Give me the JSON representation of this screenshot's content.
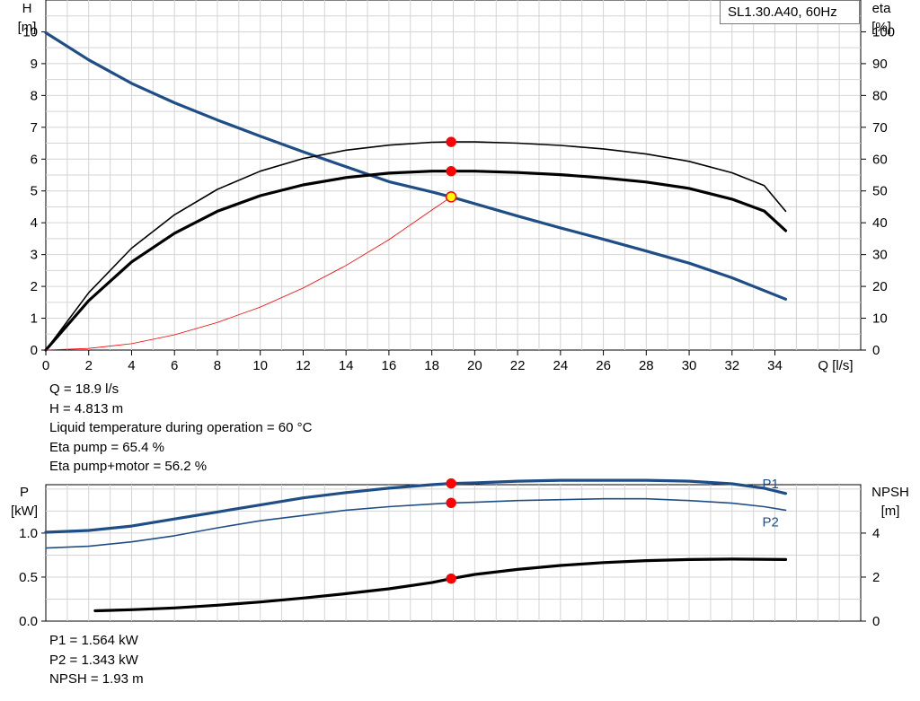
{
  "chart_data": [
    {
      "type": "line",
      "legend_label": "SL1.30.A40, 60Hz",
      "y_label_left": [
        "H",
        "[m]"
      ],
      "y_label_right": [
        "eta",
        "[%]"
      ],
      "x_label": "Q [l/s]",
      "xlim": [
        0,
        38
      ],
      "ylim": [
        0,
        11
      ],
      "y2lim": [
        0,
        110
      ],
      "x_ticks": [
        0,
        2,
        4,
        6,
        8,
        10,
        12,
        14,
        16,
        18,
        20,
        22,
        24,
        26,
        28,
        30,
        32,
        34
      ],
      "y_ticks": [
        0,
        1,
        2,
        3,
        4,
        5,
        6,
        7,
        8,
        9,
        10
      ],
      "y2_ticks": [
        0,
        10,
        20,
        30,
        40,
        50,
        60,
        70,
        80,
        90,
        100
      ],
      "grid": true,
      "series": [
        {
          "axis": "left",
          "color": "#1f4e86",
          "points": [
            [
              0,
              9.97
            ],
            [
              2,
              9.12
            ],
            [
              4,
              8.38
            ],
            [
              6,
              7.77
            ],
            [
              8,
              7.23
            ],
            [
              10,
              6.72
            ],
            [
              12,
              6.23
            ],
            [
              14,
              5.76
            ],
            [
              16,
              5.29
            ],
            [
              18,
              4.97
            ],
            [
              18.9,
              4.813
            ],
            [
              20,
              4.6
            ],
            [
              22,
              4.21
            ],
            [
              24,
              3.84
            ],
            [
              26,
              3.48
            ],
            [
              28,
              3.11
            ],
            [
              30,
              2.73
            ],
            [
              32,
              2.27
            ],
            [
              34.5,
              1.6
            ]
          ]
        },
        {
          "axis": "right",
          "color": "#000000",
          "points": [
            [
              0,
              0
            ],
            [
              2,
              18
            ],
            [
              4,
              32
            ],
            [
              6,
              42.5
            ],
            [
              8,
              50.5
            ],
            [
              10,
              56.2
            ],
            [
              12,
              60.2
            ],
            [
              14,
              62.8
            ],
            [
              16,
              64.4
            ],
            [
              18,
              65.3
            ],
            [
              18.9,
              65.4
            ],
            [
              20,
              65.4
            ],
            [
              22,
              65
            ],
            [
              24,
              64.3
            ],
            [
              26,
              63.2
            ],
            [
              28,
              61.6
            ],
            [
              30,
              59.3
            ],
            [
              32,
              55.7
            ],
            [
              33.5,
              51.7
            ],
            [
              34.5,
              43.6
            ]
          ]
        },
        {
          "axis": "right",
          "color": "#000000",
          "points": [
            [
              0,
              0
            ],
            [
              2,
              15.5
            ],
            [
              4,
              27.7
            ],
            [
              6,
              36.7
            ],
            [
              8,
              43.6
            ],
            [
              10,
              48.5
            ],
            [
              12,
              51.9
            ],
            [
              14,
              54.2
            ],
            [
              16,
              55.6
            ],
            [
              18,
              56.2
            ],
            [
              18.9,
              56.2
            ],
            [
              20,
              56.2
            ],
            [
              22,
              55.8
            ],
            [
              24,
              55.1
            ],
            [
              26,
              54.1
            ],
            [
              28,
              52.8
            ],
            [
              30,
              50.8
            ],
            [
              32,
              47.4
            ],
            [
              33.5,
              43.7
            ],
            [
              34.5,
              37.5
            ]
          ]
        },
        {
          "axis": "left",
          "color": "#ff0000",
          "points": [
            [
              0,
              0
            ],
            [
              2,
              0.05
            ],
            [
              4,
              0.2
            ],
            [
              6,
              0.48
            ],
            [
              8,
              0.87
            ],
            [
              10,
              1.35
            ],
            [
              12,
              1.95
            ],
            [
              14,
              2.66
            ],
            [
              16,
              3.47
            ],
            [
              18,
              4.4
            ],
            [
              18.9,
              4.813
            ]
          ]
        }
      ],
      "operating_points": [
        {
          "x": 18.9,
          "y": 65.4,
          "axis": "right",
          "fill": "#ff0000"
        },
        {
          "x": 18.9,
          "y": 56.2,
          "axis": "right",
          "fill": "#ff0000"
        },
        {
          "x": 18.9,
          "y": 4.813,
          "axis": "left",
          "fill": "#ffff00"
        }
      ]
    },
    {
      "type": "line",
      "y_label_left": [
        "P",
        "[kW]"
      ],
      "y_label_right": [
        "NPSH",
        "[m]"
      ],
      "xlim": [
        0,
        38
      ],
      "ylim": [
        0,
        1.55
      ],
      "y2lim": [
        0,
        6.2
      ],
      "y_ticks": [
        0,
        0.5,
        1.0
      ],
      "y_tick_labels": [
        "0.0",
        "0.5",
        "1.0"
      ],
      "y2_ticks": [
        0,
        2,
        4
      ],
      "grid": true,
      "series": [
        {
          "name": "P1",
          "axis": "left",
          "color": "#1f4e86",
          "points": [
            [
              0,
              1.01
            ],
            [
              2,
              1.03
            ],
            [
              4,
              1.08
            ],
            [
              6,
              1.16
            ],
            [
              8,
              1.24
            ],
            [
              10,
              1.32
            ],
            [
              12,
              1.4
            ],
            [
              14,
              1.46
            ],
            [
              16,
              1.51
            ],
            [
              18,
              1.55
            ],
            [
              18.9,
              1.564
            ],
            [
              20,
              1.57
            ],
            [
              22,
              1.59
            ],
            [
              24,
              1.6
            ],
            [
              26,
              1.6
            ],
            [
              28,
              1.6
            ],
            [
              30,
              1.59
            ],
            [
              32,
              1.56
            ],
            [
              33.5,
              1.51
            ],
            [
              34.5,
              1.45
            ]
          ]
        },
        {
          "name": "P2",
          "axis": "left",
          "color": "#1f4e86",
          "points": [
            [
              0,
              0.83
            ],
            [
              2,
              0.85
            ],
            [
              4,
              0.9
            ],
            [
              6,
              0.97
            ],
            [
              8,
              1.06
            ],
            [
              10,
              1.14
            ],
            [
              12,
              1.2
            ],
            [
              14,
              1.26
            ],
            [
              16,
              1.3
            ],
            [
              18,
              1.33
            ],
            [
              18.9,
              1.343
            ],
            [
              20,
              1.35
            ],
            [
              22,
              1.37
            ],
            [
              24,
              1.38
            ],
            [
              26,
              1.39
            ],
            [
              28,
              1.39
            ],
            [
              30,
              1.37
            ],
            [
              32,
              1.34
            ],
            [
              33.5,
              1.3
            ],
            [
              34.5,
              1.26
            ]
          ]
        },
        {
          "axis": "right",
          "color": "#000000",
          "points": [
            [
              2.3,
              0.47
            ],
            [
              4,
              0.52
            ],
            [
              6,
              0.6
            ],
            [
              8,
              0.72
            ],
            [
              10,
              0.87
            ],
            [
              12,
              1.05
            ],
            [
              14,
              1.25
            ],
            [
              16,
              1.47
            ],
            [
              18,
              1.75
            ],
            [
              18.9,
              1.93
            ],
            [
              20,
              2.12
            ],
            [
              22,
              2.35
            ],
            [
              24,
              2.53
            ],
            [
              26,
              2.66
            ],
            [
              28,
              2.75
            ],
            [
              30,
              2.8
            ],
            [
              32,
              2.82
            ],
            [
              34.5,
              2.8
            ]
          ]
        }
      ],
      "operating_points": [
        {
          "x": 18.9,
          "y": 1.564,
          "axis": "left",
          "fill": "#ff0000"
        },
        {
          "x": 18.9,
          "y": 1.343,
          "axis": "left",
          "fill": "#ff0000"
        },
        {
          "x": 18.9,
          "y": 1.93,
          "axis": "right",
          "fill": "#ff0000"
        }
      ]
    }
  ],
  "info_top": [
    "Q = 18.9 l/s",
    "H = 4.813 m",
    "Liquid temperature during operation = 60 °C",
    "Eta pump = 65.4 %",
    "Eta pump+motor = 56.2 %"
  ],
  "info_bottom": [
    "P1 = 1.564 kW",
    "P2 = 1.343 kW",
    "NPSH = 1.93 m"
  ]
}
